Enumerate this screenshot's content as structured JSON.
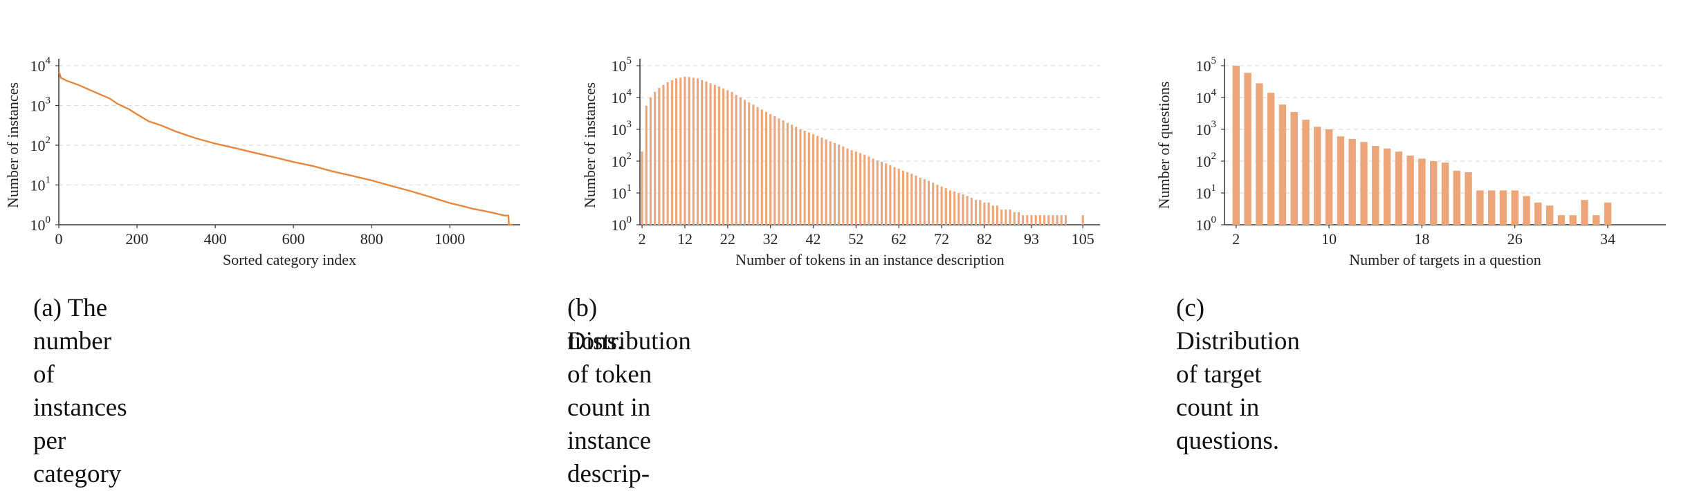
{
  "charts": {
    "a": {
      "caption": "(a) The number of instances per category",
      "chart_data": {
        "type": "line",
        "xlabel": "Sorted category index",
        "ylabel": "Number of instances",
        "yscale": "log",
        "xlim": [
          0,
          1180
        ],
        "ylim": [
          1,
          10000
        ],
        "xticks": [
          0,
          200,
          400,
          600,
          800,
          1000
        ],
        "yticks_exp": [
          0,
          1,
          2,
          3,
          4
        ],
        "ytick_base": "10",
        "grid": "horizontal dashed",
        "color": "#e6873f",
        "series": [
          {
            "x": [
              0,
              2,
              5,
              20,
              50,
              100,
              130,
              150,
              180,
              200,
              230,
              260,
              300,
              350,
              400,
              450,
              500,
              550,
              600,
              650,
              700,
              750,
              800,
              850,
              900,
              950,
              1000,
              1030,
              1060,
              1090,
              1110,
              1130,
              1140,
              1150,
              1151,
              1160
            ],
            "y": [
              7000,
              6500,
              5000,
              4200,
              3300,
              2000,
              1500,
              1100,
              800,
              600,
              400,
              320,
              220,
              150,
              110,
              85,
              65,
              50,
              38,
              30,
              22,
              17,
              13,
              9.5,
              7,
              5,
              3.5,
              3,
              2.5,
              2.2,
              2,
              1.8,
              1.7,
              1.7,
              1,
              1
            ]
          }
        ]
      }
    },
    "b": {
      "caption": "(b) Distribution of token count in instance descrip-",
      "caption2": "tions.",
      "chart_data": {
        "type": "bar",
        "xlabel": "Number of tokens in an instance description",
        "ylabel": "Number of instances",
        "yscale": "log",
        "xlim": [
          1.5,
          109
        ],
        "ylim": [
          1,
          100000
        ],
        "xticks": [
          2,
          12,
          22,
          32,
          42,
          52,
          62,
          72,
          82,
          93,
          105
        ],
        "yticks_exp": [
          0,
          1,
          2,
          3,
          4,
          5
        ],
        "ytick_base": "10",
        "grid": "horizontal dashed",
        "color": "#eda67a",
        "x": [
          2,
          3,
          4,
          5,
          6,
          7,
          8,
          9,
          10,
          11,
          12,
          13,
          14,
          15,
          16,
          17,
          18,
          19,
          20,
          21,
          22,
          23,
          24,
          25,
          26,
          27,
          28,
          29,
          30,
          31,
          32,
          33,
          34,
          35,
          36,
          37,
          38,
          39,
          40,
          41,
          42,
          43,
          44,
          45,
          46,
          47,
          48,
          49,
          50,
          51,
          52,
          53,
          54,
          55,
          56,
          57,
          58,
          59,
          60,
          61,
          62,
          63,
          64,
          65,
          66,
          67,
          68,
          69,
          70,
          71,
          72,
          73,
          74,
          75,
          76,
          77,
          78,
          79,
          80,
          81,
          82,
          83,
          84,
          85,
          86,
          87,
          88,
          89,
          90,
          91,
          92,
          93,
          94,
          95,
          96,
          97,
          98,
          99,
          100,
          101,
          105
        ],
        "values": [
          200,
          5500,
          10000,
          15000,
          20000,
          25000,
          30000,
          35000,
          40000,
          42000,
          45000,
          44000,
          42000,
          40000,
          35000,
          32000,
          28000,
          25000,
          22000,
          19000,
          17000,
          15000,
          12000,
          10000,
          8500,
          7000,
          6000,
          5000,
          4200,
          3500,
          3000,
          2600,
          2200,
          1900,
          1600,
          1400,
          1200,
          1000,
          900,
          800,
          700,
          620,
          550,
          480,
          420,
          370,
          330,
          290,
          250,
          220,
          200,
          180,
          160,
          140,
          120,
          105,
          95,
          85,
          75,
          65,
          58,
          50,
          45,
          40,
          35,
          30,
          27,
          24,
          21,
          18,
          16,
          14,
          12,
          11,
          10,
          9,
          8,
          7,
          6,
          6,
          5,
          5,
          4,
          4,
          3,
          3,
          3,
          2.5,
          2.5,
          2,
          2,
          2,
          2,
          2,
          2,
          2,
          2,
          2,
          2,
          2,
          2
        ]
      }
    },
    "c": {
      "caption": "(c)  Distribution of target count in questions.",
      "chart_data": {
        "type": "bar",
        "xlabel": "Number of targets in a question",
        "ylabel": "Number of questions",
        "yscale": "log",
        "xlim": [
          1,
          39
        ],
        "ylim": [
          1,
          100000
        ],
        "xticks": [
          2,
          10,
          18,
          26,
          34
        ],
        "yticks_exp": [
          0,
          1,
          2,
          3,
          4,
          5
        ],
        "ytick_base": "10",
        "grid": "horizontal dashed",
        "color": "#eda67a",
        "x": [
          2,
          3,
          4,
          5,
          6,
          7,
          8,
          9,
          10,
          11,
          12,
          13,
          14,
          15,
          16,
          17,
          18,
          19,
          20,
          21,
          22,
          23,
          24,
          25,
          26,
          27,
          28,
          29,
          30,
          31,
          32,
          33,
          34
        ],
        "values": [
          100000,
          60000,
          28000,
          14000,
          6000,
          3500,
          2000,
          1200,
          1000,
          600,
          500,
          400,
          300,
          250,
          200,
          150,
          120,
          100,
          90,
          50,
          45,
          12,
          12,
          12,
          12,
          8,
          5,
          4,
          2,
          2,
          6,
          2,
          5
        ]
      }
    }
  }
}
